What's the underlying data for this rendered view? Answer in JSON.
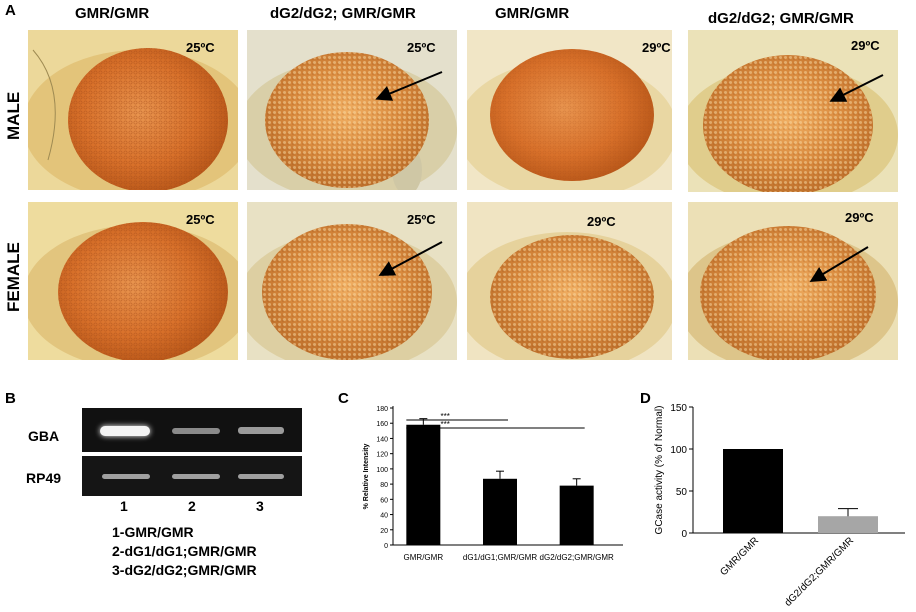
{
  "panel_a": {
    "letter": "A",
    "columns": [
      "GMR/GMR",
      "dG2/dG2; GMR/GMR",
      "GMR/GMR",
      "dG2/dG2; GMR/GMR"
    ],
    "rows": [
      "MALE",
      "FEMALE"
    ],
    "temps": [
      "25ºC",
      "25ºC",
      "29ºC",
      "29ºC",
      "25ºC",
      "25ºC",
      "29ºC",
      "29ºC"
    ]
  },
  "panel_b": {
    "letter": "B",
    "gel_labels": [
      "GBA",
      "RP49"
    ],
    "lane_numbers": [
      "1",
      "2",
      "3"
    ],
    "legend": [
      "1-GMR/GMR",
      "2-dG1/dG1;GMR/GMR",
      "3-dG2/dG2;GMR/GMR"
    ]
  },
  "chart_data": [
    {
      "type": "bar",
      "panel": "C",
      "ylabel": "% Relative Intensity",
      "categories": [
        "GMR/GMR",
        "dG1/dG1;GMR/GMR",
        "dG2/dG2;GMR/GMR"
      ],
      "values": [
        158,
        87,
        78
      ],
      "errors": [
        8,
        10,
        9
      ],
      "ylim": [
        0,
        180
      ],
      "yticks": [
        "0",
        "20",
        "40",
        "60",
        "80",
        "100",
        "120",
        "140",
        "160",
        "180"
      ],
      "significance": [
        "***",
        "***"
      ],
      "bar_color": "#000000"
    },
    {
      "type": "bar",
      "panel": "D",
      "ylabel": "GCase activity (% of Normal)",
      "categories": [
        "GMR/GMR",
        "dG2/dG2;GMR/GMR"
      ],
      "values": [
        100,
        20
      ],
      "errors": [
        0,
        9
      ],
      "ylim": [
        0,
        150
      ],
      "yticks": [
        "0",
        "50",
        "100",
        "150"
      ],
      "bar_colors": [
        "#000000",
        "#a6a6a6"
      ]
    }
  ]
}
